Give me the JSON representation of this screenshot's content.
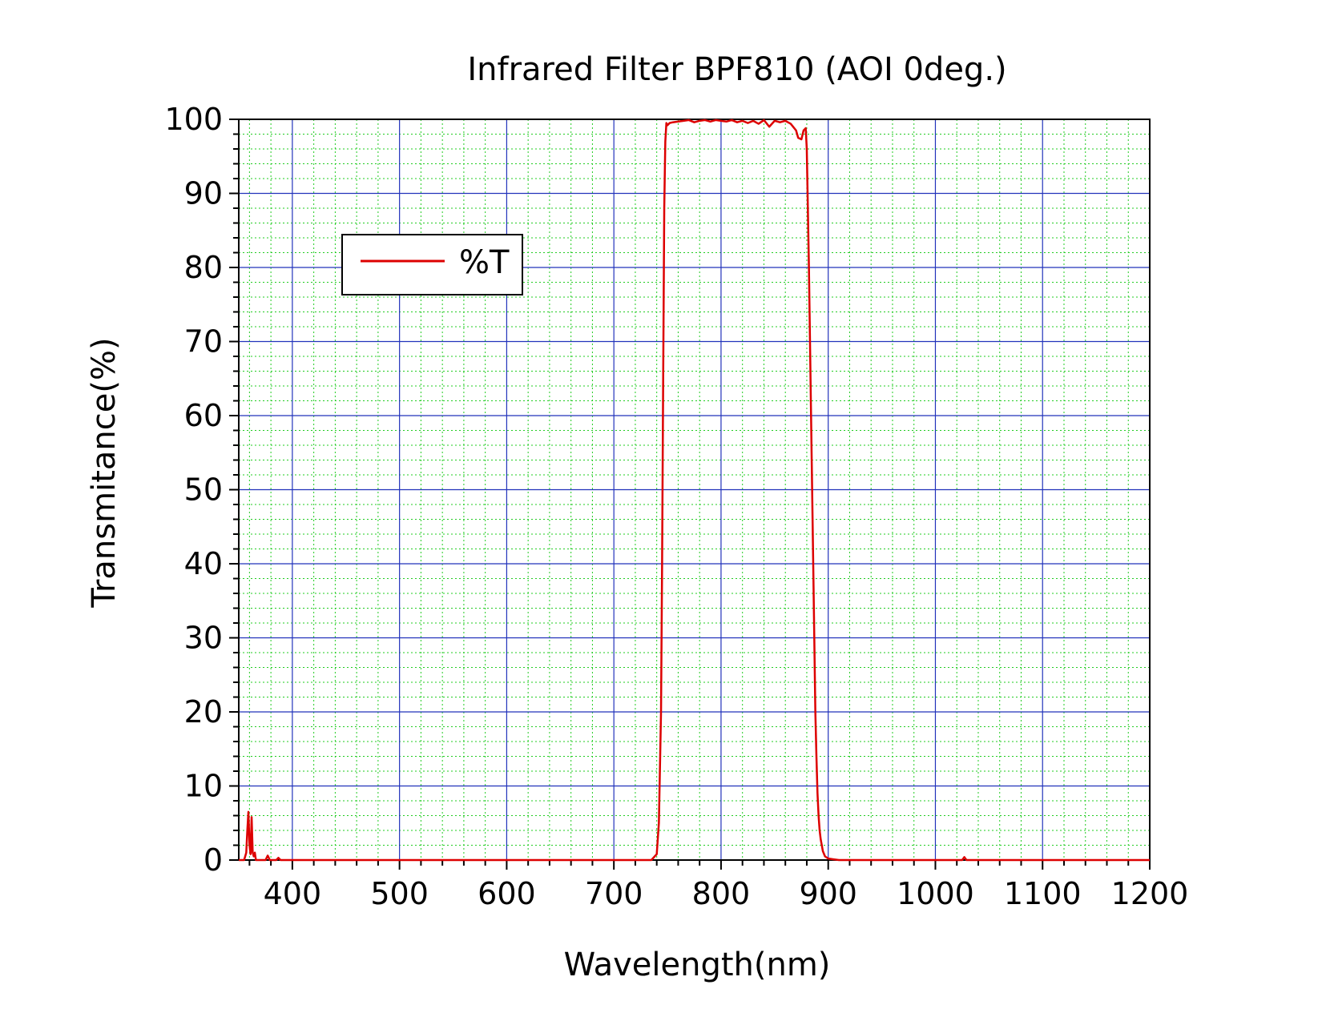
{
  "chart_data": {
    "type": "line",
    "title": "Infrared Filter BPF810 (AOI 0deg.)",
    "xlabel": "Wavelength(nm)",
    "ylabel": "Transmitance(%)",
    "xlim": [
      350,
      1200
    ],
    "ylim": [
      0,
      100
    ],
    "x_ticks": [
      400,
      500,
      600,
      700,
      800,
      900,
      1000,
      1100,
      1200
    ],
    "y_ticks": [
      0,
      10,
      20,
      30,
      40,
      50,
      60,
      70,
      80,
      90,
      100
    ],
    "grid": true,
    "legend": {
      "position": "upper-left",
      "entries": [
        "%T"
      ]
    },
    "series": [
      {
        "name": "%T",
        "color": "#dd0000",
        "x": [
          350,
          355,
          357,
          358,
          359,
          360,
          361,
          362,
          363,
          364,
          365,
          366,
          367,
          370,
          375,
          377,
          379,
          385,
          387,
          389,
          400,
          500,
          600,
          700,
          735,
          740,
          742,
          744,
          745,
          746,
          747,
          748,
          749,
          750,
          752,
          755,
          760,
          765,
          770,
          775,
          780,
          785,
          790,
          795,
          800,
          805,
          810,
          815,
          820,
          825,
          830,
          835,
          840,
          845,
          850,
          855,
          860,
          865,
          870,
          872,
          875,
          877,
          879,
          880,
          882,
          884,
          885,
          886,
          887,
          888,
          889,
          890,
          891,
          892,
          893,
          894,
          895,
          897,
          900,
          905,
          910,
          950,
          1000,
          1025,
          1027,
          1029,
          1100,
          1200
        ],
        "y": [
          0,
          0,
          1,
          4,
          6.5,
          2,
          0.8,
          5.8,
          1,
          0.5,
          1,
          0,
          0,
          0,
          0,
          0.6,
          0,
          0,
          0.3,
          0,
          0,
          0,
          0,
          0,
          0,
          0.8,
          5,
          20,
          40,
          65,
          88,
          97,
          99.5,
          99.2,
          99.5,
          99.6,
          99.7,
          99.8,
          99.9,
          99.6,
          99.8,
          99.9,
          99.7,
          99.9,
          99.8,
          99.7,
          99.9,
          99.6,
          99.8,
          99.5,
          99.8,
          99.4,
          99.9,
          99.0,
          99.8,
          99.6,
          99.8,
          99.4,
          98.5,
          97.5,
          97.3,
          98.5,
          98.8,
          96,
          80,
          60,
          50,
          40,
          30,
          20,
          14,
          9,
          6,
          4,
          2.8,
          2,
          1.2,
          0.5,
          0.2,
          0.1,
          0,
          0,
          0,
          0,
          0.4,
          0,
          0,
          0
        ]
      }
    ]
  }
}
